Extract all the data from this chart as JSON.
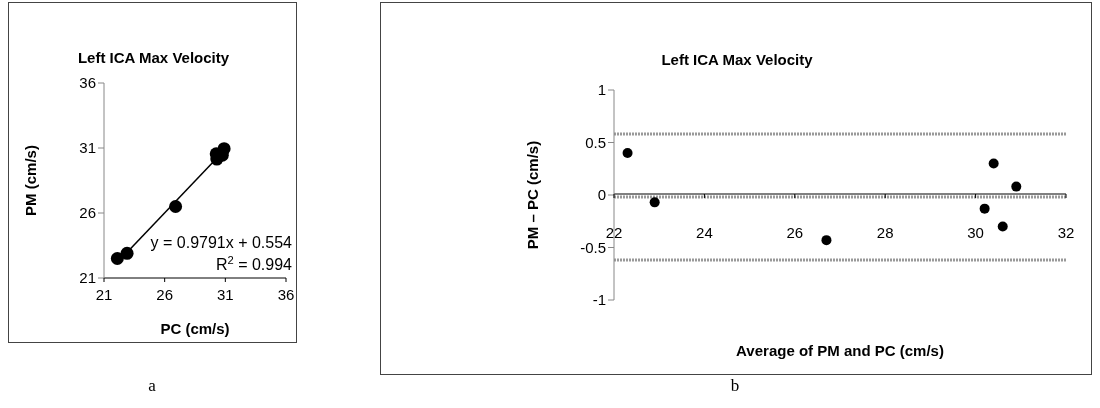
{
  "chart_data": [
    {
      "type": "scatter",
      "title": "Left ICA Max Velocity",
      "xlabel": "PC (cm/s)",
      "ylabel": "PM (cm/s)",
      "series": [
        {
          "color": "#000000",
          "x": [
            22.1,
            22.9,
            26.9,
            30.3,
            30.25,
            30.75,
            30.9
          ],
          "values": [
            22.5,
            22.9,
            26.5,
            30.15,
            30.55,
            30.45,
            30.95
          ]
        },
        {
          "type": "line",
          "color": "#000000",
          "marker": "none",
          "x": [
            22.1,
            30.9
          ],
          "values": [
            22.19,
            30.81
          ]
        }
      ],
      "xlim": [
        21,
        36
      ],
      "xticks": [
        21,
        26,
        31,
        36
      ],
      "ylim": [
        21,
        36
      ],
      "yticks": [
        21,
        26,
        31,
        36
      ],
      "marker": "circle",
      "grid": false,
      "legend": false,
      "annotations": [
        "y = 0.9791x + 0.554",
        "R$^{2}$ = 0.994",
        "a"
      ]
    },
    {
      "type": "scatter",
      "title": "Left ICA Max Velocity",
      "xlabel": "Average of PM and PC (cm/s)",
      "ylabel": "PM – PC (cm/s)",
      "series": [
        {
          "color": "#000000",
          "x": [
            22.3,
            22.9,
            26.7,
            30.2,
            30.4,
            30.6,
            30.9
          ],
          "values": [
            0.4,
            -0.07,
            -0.43,
            -0.13,
            0.3,
            -0.3,
            0.08
          ]
        }
      ],
      "xlim": [
        22,
        32
      ],
      "xticks": [
        22,
        24,
        26,
        28,
        30,
        32
      ],
      "ylim": [
        -1,
        1
      ],
      "yticks": [
        -1,
        -0.5,
        0,
        0.5,
        1
      ],
      "ref_lines": [
        {
          "axis": "y",
          "value": 0.58,
          "color": "#999999",
          "line_style": "dotted"
        },
        {
          "axis": "y",
          "value": -0.02,
          "color": "#999999",
          "line_style": "dotted"
        },
        {
          "axis": "y",
          "value": -0.62,
          "color": "#999999",
          "line_style": "dotted"
        }
      ],
      "marker": "circle",
      "grid": false,
      "legend": false,
      "annotations": [
        "b"
      ]
    }
  ]
}
